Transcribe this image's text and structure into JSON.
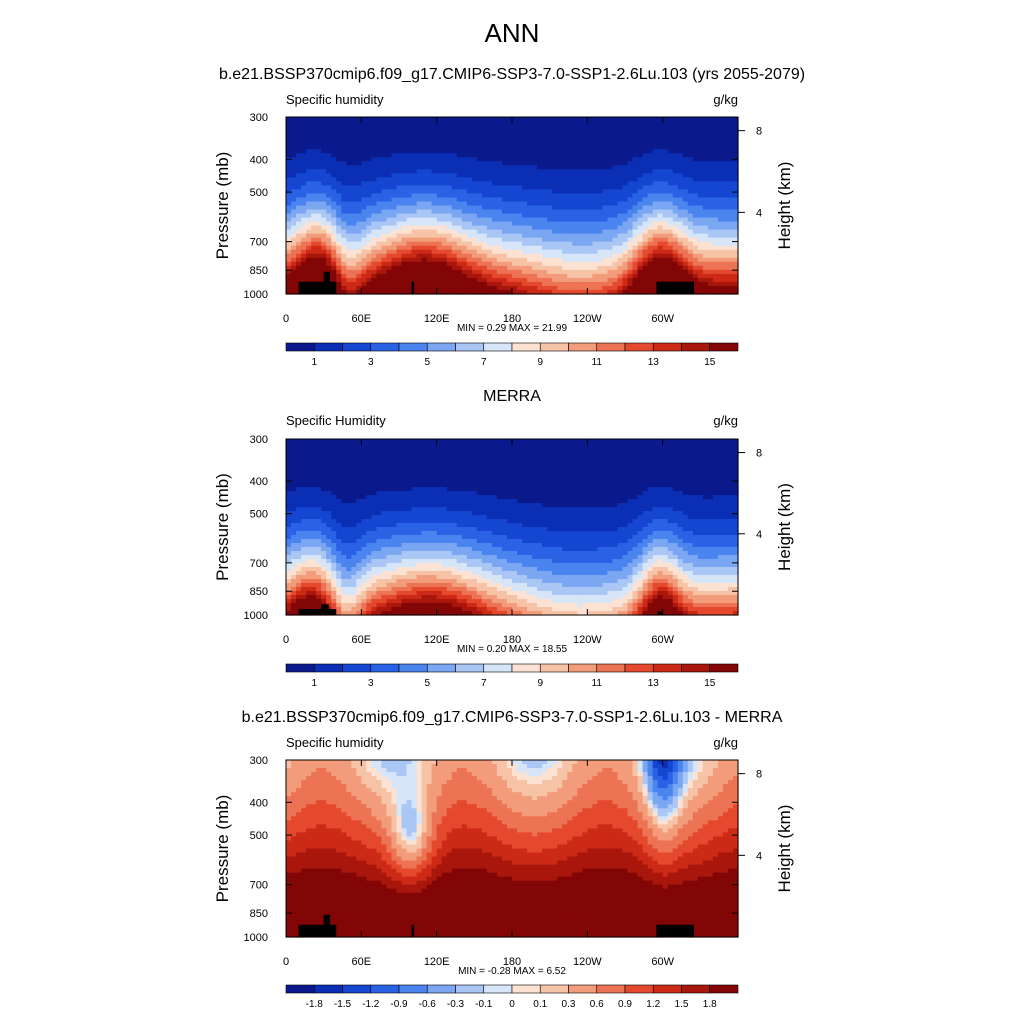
{
  "figure": {
    "main_title": "ANN"
  },
  "chart_data": [
    {
      "type": "heatmap",
      "panel_title": "b.e21.BSSP370cmip6.f09_g17.CMIP6-SSP3-7.0-SSP1-2.6Lu.103 (yrs 2055-2079)",
      "left_label": "Specific humidity",
      "units": "g/kg",
      "ylabel": "Pressure (mb)",
      "ylabel_right": "Height (km)",
      "x_ticks": [
        "0",
        "60E",
        "120E",
        "180",
        "120W",
        "60W"
      ],
      "x_tick_values": [
        0,
        60,
        120,
        180,
        240,
        300
      ],
      "xlim": [
        0,
        360
      ],
      "y_ticks": [
        "300",
        "400",
        "500",
        "700",
        "850",
        "1000"
      ],
      "y_tick_values": [
        300,
        400,
        500,
        700,
        850,
        1000
      ],
      "ylim": [
        1000,
        300
      ],
      "y_ticks_right": [
        "8",
        "4"
      ],
      "y_tick_right_values": [
        8,
        4
      ],
      "stats": "MIN =   0.29  MAX =  21.99",
      "colorbar_labels": [
        "1",
        "3",
        "5",
        "7",
        "9",
        "11",
        "13",
        "15"
      ],
      "colorbar_levels": [
        1,
        2,
        3,
        4,
        5,
        6,
        7,
        8,
        9,
        10,
        11,
        12,
        13,
        14,
        15
      ],
      "colorbar_colors": [
        "#0a1a8c",
        "#0a2fb4",
        "#1446d2",
        "#2a62e6",
        "#4a84ee",
        "#7aa6f2",
        "#a9c6f5",
        "#d6e6f8",
        "#fbe2d2",
        "#f7c3a6",
        "#f29c7c",
        "#ec7354",
        "#e4492e",
        "#cc2a16",
        "#a8160c",
        "#820606"
      ],
      "field": "model"
    },
    {
      "type": "heatmap",
      "panel_title": "MERRA",
      "left_label": "Specific Humidity",
      "units": "g/kg",
      "ylabel": "Pressure (mb)",
      "ylabel_right": "Height (km)",
      "x_ticks": [
        "0",
        "60E",
        "120E",
        "180",
        "120W",
        "60W"
      ],
      "x_tick_values": [
        0,
        60,
        120,
        180,
        240,
        300
      ],
      "xlim": [
        0,
        360
      ],
      "y_ticks": [
        "300",
        "400",
        "500",
        "700",
        "850",
        "1000"
      ],
      "y_tick_values": [
        300,
        400,
        500,
        700,
        850,
        1000
      ],
      "ylim": [
        1000,
        300
      ],
      "y_ticks_right": [
        "8",
        "4"
      ],
      "y_tick_right_values": [
        8,
        4
      ],
      "stats": "MIN =   0.20  MAX =  18.55",
      "colorbar_labels": [
        "1",
        "3",
        "5",
        "7",
        "9",
        "11",
        "13",
        "15"
      ],
      "colorbar_levels": [
        1,
        2,
        3,
        4,
        5,
        6,
        7,
        8,
        9,
        10,
        11,
        12,
        13,
        14,
        15
      ],
      "colorbar_colors": [
        "#0a1a8c",
        "#0a2fb4",
        "#1446d2",
        "#2a62e6",
        "#4a84ee",
        "#7aa6f2",
        "#a9c6f5",
        "#d6e6f8",
        "#fbe2d2",
        "#f7c3a6",
        "#f29c7c",
        "#ec7354",
        "#e4492e",
        "#cc2a16",
        "#a8160c",
        "#820606"
      ],
      "field": "obs"
    },
    {
      "type": "heatmap",
      "panel_title": "b.e21.BSSP370cmip6.f09_g17.CMIP6-SSP3-7.0-SSP1-2.6Lu.103 - MERRA",
      "left_label": "Specific humidity",
      "units": "g/kg",
      "ylabel": "Pressure (mb)",
      "ylabel_right": "Height (km)",
      "x_ticks": [
        "0",
        "60E",
        "120E",
        "180",
        "120W",
        "60W"
      ],
      "x_tick_values": [
        0,
        60,
        120,
        180,
        240,
        300
      ],
      "xlim": [
        0,
        360
      ],
      "y_ticks": [
        "300",
        "400",
        "500",
        "700",
        "850",
        "1000"
      ],
      "y_tick_values": [
        300,
        400,
        500,
        700,
        850,
        1000
      ],
      "ylim": [
        1000,
        300
      ],
      "y_ticks_right": [
        "8",
        "4"
      ],
      "y_tick_right_values": [
        8,
        4
      ],
      "stats": "MIN =  -0.28  MAX =   6.52",
      "colorbar_labels": [
        "-1.8",
        "-1.5",
        "-1.2",
        "-0.9",
        "-0.6",
        "-0.3",
        "-0.1",
        "0",
        "0.1",
        "0.3",
        "0.6",
        "0.9",
        "1.2",
        "1.5",
        "1.8"
      ],
      "colorbar_levels": [
        -1.8,
        -1.5,
        -1.2,
        -0.9,
        -0.6,
        -0.3,
        -0.1,
        0,
        0.1,
        0.3,
        0.6,
        0.9,
        1.2,
        1.5,
        1.8
      ],
      "colorbar_colors": [
        "#0a1a8c",
        "#0a2fb4",
        "#1446d2",
        "#2a62e6",
        "#4a84ee",
        "#7aa6f2",
        "#a9c6f5",
        "#d6e6f8",
        "#fbe2d2",
        "#f7c3a6",
        "#f29c7c",
        "#ec7354",
        "#e4492e",
        "#cc2a16",
        "#a8160c",
        "#820606"
      ],
      "field": "diff"
    }
  ]
}
